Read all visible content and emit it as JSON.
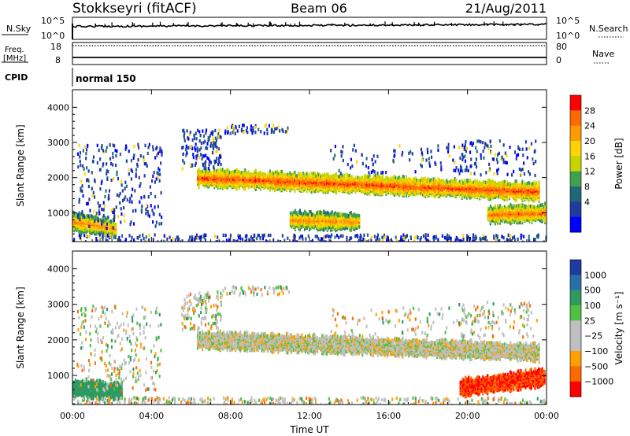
{
  "header": {
    "station": "Stokkseyri (fitACF)",
    "beam": "Beam 06",
    "date": "21/Aug/2011"
  },
  "strip_labels": {
    "nsky": "N.Sky",
    "nsky_ticks": [
      "10^5",
      "10^0"
    ],
    "nsearch": "N.Search",
    "nsearch_ticks": [
      "10^5",
      "10^0"
    ],
    "freq_line1": "Freq.",
    "freq_line2": "[MHz]",
    "freq_ticks": [
      "18",
      "8"
    ],
    "nave": "Nave",
    "nave_ticks": [
      "80",
      "0"
    ],
    "cpid": "CPID",
    "cpid_value": "normal 150"
  },
  "chart_data": [
    {
      "type": "heatmap",
      "name": "power",
      "ylabel": "Slant Range [km]",
      "xlabel": "Time UT",
      "yticks": [
        "4000",
        "3000",
        "2000",
        "1000"
      ],
      "ylim": [
        180,
        4500
      ],
      "xticks": [
        "00:00",
        "04:00",
        "08:00",
        "12:00",
        "16:00",
        "20:00",
        "00:00"
      ],
      "xlim": [
        0,
        24
      ],
      "colorbar_label": "Power [dB]",
      "colorbar_ticks": [
        "28",
        "24",
        "20",
        "16",
        "12",
        "8",
        "4"
      ],
      "colorbar_colors": [
        "#ff0000",
        "#ff6a00",
        "#ff9a00",
        "#ffd400",
        "#c8d400",
        "#3fa050",
        "#206878",
        "#1e3ca0",
        "#0000ff"
      ],
      "features": [
        {
          "t0": 6.3,
          "t1": 23.6,
          "range_start_km": 2050,
          "range_end_km": 1650,
          "level_db": 24
        },
        {
          "t0": 0.0,
          "t1": 2.2,
          "range_start_km": 800,
          "range_end_km": 600,
          "level_db": 20
        },
        {
          "t0": 11.0,
          "t1": 14.5,
          "range_start_km": 850,
          "range_end_km": 800,
          "level_db": 20
        },
        {
          "t0": 21.0,
          "t1": 23.9,
          "range_start_km": 1000,
          "range_end_km": 1050,
          "level_db": 22
        }
      ]
    },
    {
      "type": "heatmap",
      "name": "velocity",
      "ylabel": "Slant Range [km]",
      "xlabel": "Time UT",
      "yticks": [
        "4000",
        "3000",
        "2000",
        "1000"
      ],
      "ylim": [
        180,
        4500
      ],
      "xticks": [
        "00:00",
        "04:00",
        "08:00",
        "12:00",
        "16:00",
        "20:00",
        "00:00"
      ],
      "xlim": [
        0,
        24
      ],
      "colorbar_label": "Velocity [m s⁻¹]",
      "colorbar_ticks": [
        "1000",
        "500",
        "100",
        "25",
        "−25",
        "−100",
        "−500",
        "−1000"
      ],
      "colorbar_colors": [
        "#1e3ca0",
        "#2a70a8",
        "#2e9a60",
        "#50c040",
        "#c0c0c0",
        "#c0c0c0",
        "#ffa000",
        "#ff6a00",
        "#ff0000"
      ],
      "features": [
        {
          "t0": 6.3,
          "t1": 23.6,
          "range_start_km": 2050,
          "range_end_km": 1700,
          "velocity_ms": 0
        },
        {
          "t0": 0.0,
          "t1": 2.5,
          "range_start_km": 700,
          "range_end_km": 600,
          "velocity_ms": 300
        },
        {
          "t0": 19.6,
          "t1": 23.9,
          "range_start_km": 700,
          "range_end_km": 1000,
          "velocity_ms": -700
        }
      ]
    }
  ]
}
